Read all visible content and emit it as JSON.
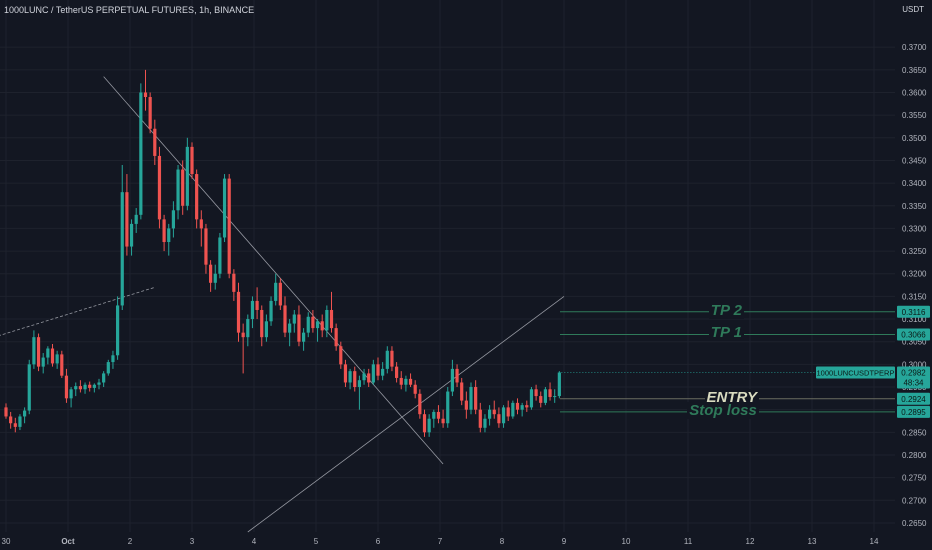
{
  "header": {
    "title": "1000LUNC / TetherUS PERPETUAL FUTURES, 1h, BINANCE"
  },
  "axis": {
    "unit": "USDT"
  },
  "colors": {
    "background": "#131722",
    "grid": "#1e222d",
    "up": "#26a69a",
    "down": "#ef5350",
    "annotation": "#2f7a5a",
    "entry": "#d9dbc0",
    "tag": "#26a69a"
  },
  "chart_data": {
    "type": "candlestick",
    "ylim": [
      0.263,
      0.376
    ],
    "y_ticks": [
      "0.2650",
      "0.2700",
      "0.2750",
      "0.2800",
      "0.2850",
      "0.2900",
      "0.2950",
      "0.3000",
      "0.3050",
      "0.3100",
      "0.3150",
      "0.3200",
      "0.3250",
      "0.3300",
      "0.3350",
      "0.3400",
      "0.3450",
      "0.3500",
      "0.3550",
      "0.3600",
      "0.3650",
      "0.3700"
    ],
    "x_ticks": [
      "30",
      "Oct",
      "2",
      "3",
      "4",
      "5",
      "6",
      "7",
      "8",
      "9",
      "10",
      "11",
      "12",
      "13",
      "14"
    ],
    "x_tick_index": [
      0,
      1,
      2,
      3,
      4,
      5,
      6,
      7,
      8,
      9,
      10,
      11,
      12,
      13,
      14
    ],
    "candles": [
      [
        0.2905,
        0.2914,
        0.288,
        0.2885
      ],
      [
        0.2885,
        0.2895,
        0.2858,
        0.287
      ],
      [
        0.287,
        0.2882,
        0.285,
        0.2862
      ],
      [
        0.2862,
        0.289,
        0.2855,
        0.2885
      ],
      [
        0.2885,
        0.2905,
        0.287,
        0.2898
      ],
      [
        0.2898,
        0.301,
        0.289,
        0.3
      ],
      [
        0.3,
        0.3075,
        0.299,
        0.306
      ],
      [
        0.306,
        0.3068,
        0.2985,
        0.2995
      ],
      [
        0.2995,
        0.3025,
        0.298,
        0.3015
      ],
      [
        0.3015,
        0.304,
        0.3,
        0.3035
      ],
      [
        0.3035,
        0.3045,
        0.2995,
        0.3002
      ],
      [
        0.3002,
        0.303,
        0.299,
        0.3022
      ],
      [
        0.3022,
        0.303,
        0.297,
        0.2975
      ],
      [
        0.2975,
        0.299,
        0.2915,
        0.2925
      ],
      [
        0.2925,
        0.295,
        0.2905,
        0.2945
      ],
      [
        0.2945,
        0.296,
        0.293,
        0.2952
      ],
      [
        0.2952,
        0.2965,
        0.2938,
        0.2945
      ],
      [
        0.2945,
        0.296,
        0.2935,
        0.2955
      ],
      [
        0.2955,
        0.2962,
        0.294,
        0.2948
      ],
      [
        0.2948,
        0.2958,
        0.2938,
        0.2955
      ],
      [
        0.2955,
        0.2968,
        0.2945,
        0.296
      ],
      [
        0.296,
        0.2985,
        0.295,
        0.298
      ],
      [
        0.298,
        0.301,
        0.2975,
        0.3005
      ],
      [
        0.3005,
        0.303,
        0.299,
        0.302
      ],
      [
        0.302,
        0.315,
        0.301,
        0.313
      ],
      [
        0.313,
        0.344,
        0.312,
        0.338
      ],
      [
        0.338,
        0.342,
        0.324,
        0.326
      ],
      [
        0.326,
        0.332,
        0.324,
        0.331
      ],
      [
        0.331,
        0.3345,
        0.329,
        0.333
      ],
      [
        0.333,
        0.362,
        0.332,
        0.36
      ],
      [
        0.36,
        0.365,
        0.356,
        0.359
      ],
      [
        0.359,
        0.36,
        0.351,
        0.352
      ],
      [
        0.352,
        0.354,
        0.344,
        0.346
      ],
      [
        0.346,
        0.348,
        0.33,
        0.332
      ],
      [
        0.332,
        0.333,
        0.325,
        0.327
      ],
      [
        0.327,
        0.331,
        0.324,
        0.33
      ],
      [
        0.33,
        0.336,
        0.328,
        0.334
      ],
      [
        0.334,
        0.344,
        0.332,
        0.343
      ],
      [
        0.343,
        0.345,
        0.333,
        0.335
      ],
      [
        0.335,
        0.35,
        0.334,
        0.348
      ],
      [
        0.348,
        0.349,
        0.341,
        0.342
      ],
      [
        0.342,
        0.343,
        0.33,
        0.332
      ],
      [
        0.332,
        0.334,
        0.326,
        0.33
      ],
      [
        0.33,
        0.331,
        0.32,
        0.322
      ],
      [
        0.322,
        0.323,
        0.316,
        0.318
      ],
      [
        0.318,
        0.322,
        0.3165,
        0.32
      ],
      [
        0.32,
        0.329,
        0.319,
        0.328
      ],
      [
        0.328,
        0.342,
        0.327,
        0.341
      ],
      [
        0.341,
        0.342,
        0.319,
        0.32
      ],
      [
        0.32,
        0.321,
        0.314,
        0.316
      ],
      [
        0.316,
        0.318,
        0.305,
        0.307
      ],
      [
        0.307,
        0.309,
        0.298,
        0.306
      ],
      [
        0.306,
        0.311,
        0.304,
        0.31
      ],
      [
        0.31,
        0.315,
        0.308,
        0.314
      ],
      [
        0.314,
        0.317,
        0.31,
        0.312
      ],
      [
        0.312,
        0.313,
        0.304,
        0.306
      ],
      [
        0.306,
        0.311,
        0.305,
        0.3095
      ],
      [
        0.3095,
        0.315,
        0.3085,
        0.314
      ],
      [
        0.314,
        0.32,
        0.313,
        0.318
      ],
      [
        0.318,
        0.319,
        0.312,
        0.313
      ],
      [
        0.313,
        0.315,
        0.306,
        0.307
      ],
      [
        0.307,
        0.31,
        0.304,
        0.309
      ],
      [
        0.309,
        0.312,
        0.307,
        0.311
      ],
      [
        0.311,
        0.313,
        0.304,
        0.305
      ],
      [
        0.305,
        0.308,
        0.303,
        0.307
      ],
      [
        0.307,
        0.3115,
        0.306,
        0.3105
      ],
      [
        0.3105,
        0.312,
        0.307,
        0.308
      ],
      [
        0.308,
        0.31,
        0.305,
        0.3095
      ],
      [
        0.3095,
        0.311,
        0.306,
        0.3075
      ],
      [
        0.3075,
        0.313,
        0.306,
        0.312
      ],
      [
        0.312,
        0.316,
        0.307,
        0.308
      ],
      [
        0.308,
        0.309,
        0.303,
        0.304
      ],
      [
        0.304,
        0.305,
        0.299,
        0.3
      ],
      [
        0.3,
        0.301,
        0.295,
        0.296
      ],
      [
        0.296,
        0.299,
        0.2945,
        0.2985
      ],
      [
        0.2985,
        0.2995,
        0.294,
        0.295
      ],
      [
        0.295,
        0.2975,
        0.29,
        0.2965
      ],
      [
        0.2965,
        0.299,
        0.2955,
        0.298
      ],
      [
        0.298,
        0.299,
        0.295,
        0.296
      ],
      [
        0.296,
        0.301,
        0.2955,
        0.3
      ],
      [
        0.3,
        0.3015,
        0.2965,
        0.2975
      ],
      [
        0.2975,
        0.3005,
        0.2965,
        0.299
      ],
      [
        0.299,
        0.304,
        0.298,
        0.303
      ],
      [
        0.303,
        0.304,
        0.2985,
        0.2995
      ],
      [
        0.2995,
        0.3005,
        0.296,
        0.297
      ],
      [
        0.297,
        0.2985,
        0.2945,
        0.2955
      ],
      [
        0.2955,
        0.2975,
        0.294,
        0.2968
      ],
      [
        0.2968,
        0.298,
        0.295,
        0.2955
      ],
      [
        0.2955,
        0.2965,
        0.2925,
        0.2935
      ],
      [
        0.2935,
        0.2945,
        0.288,
        0.289
      ],
      [
        0.289,
        0.29,
        0.284,
        0.285
      ],
      [
        0.285,
        0.289,
        0.284,
        0.288
      ],
      [
        0.288,
        0.29,
        0.286,
        0.2895
      ],
      [
        0.2895,
        0.291,
        0.287,
        0.288
      ],
      [
        0.288,
        0.29,
        0.286,
        0.287
      ],
      [
        0.287,
        0.295,
        0.286,
        0.294
      ],
      [
        0.294,
        0.301,
        0.293,
        0.299
      ],
      [
        0.299,
        0.3,
        0.295,
        0.296
      ],
      [
        0.296,
        0.297,
        0.291,
        0.292
      ],
      [
        0.292,
        0.294,
        0.288,
        0.29
      ],
      [
        0.29,
        0.296,
        0.289,
        0.295
      ],
      [
        0.295,
        0.2965,
        0.289,
        0.29
      ],
      [
        0.29,
        0.2915,
        0.285,
        0.286
      ],
      [
        0.286,
        0.289,
        0.285,
        0.288
      ],
      [
        0.288,
        0.291,
        0.2865,
        0.29
      ],
      [
        0.29,
        0.292,
        0.288,
        0.289
      ],
      [
        0.289,
        0.2905,
        0.286,
        0.287
      ],
      [
        0.287,
        0.291,
        0.286,
        0.2905
      ],
      [
        0.2905,
        0.292,
        0.2875,
        0.2885
      ],
      [
        0.2885,
        0.292,
        0.288,
        0.2915
      ],
      [
        0.2915,
        0.2925,
        0.289,
        0.29
      ],
      [
        0.29,
        0.2915,
        0.2885,
        0.291
      ],
      [
        0.291,
        0.292,
        0.2895,
        0.2905
      ],
      [
        0.2905,
        0.295,
        0.29,
        0.2945
      ],
      [
        0.2945,
        0.2955,
        0.292,
        0.293
      ],
      [
        0.293,
        0.294,
        0.2905,
        0.2915
      ],
      [
        0.2915,
        0.295,
        0.291,
        0.2945
      ],
      [
        0.2945,
        0.296,
        0.292,
        0.2928
      ],
      [
        0.2928,
        0.2945,
        0.2915,
        0.293
      ],
      [
        0.293,
        0.2985,
        0.2925,
        0.2982
      ]
    ],
    "levels": [
      {
        "label": "TP 2",
        "price": 0.3116,
        "tag": "0.3116"
      },
      {
        "label": "TP 1",
        "price": 0.3066,
        "tag": "0.3066"
      },
      {
        "label": "ENTRY",
        "price": 0.2924,
        "tag": "0.2924"
      },
      {
        "label": "Stop loss",
        "price": 0.2895,
        "tag": "0.2895"
      }
    ],
    "current_price": {
      "symbol": "1000LUNCUSDTPERP",
      "price": "0.2982",
      "countdown": "48:34"
    },
    "trendlines": [
      {
        "style": "dashed",
        "from": [
          -12,
          0.303
        ],
        "to": [
          32,
          0.317
        ]
      },
      {
        "style": "solid",
        "from": [
          21,
          0.3635
        ],
        "to": [
          94,
          0.278
        ]
      },
      {
        "style": "solid",
        "from": [
          52,
          0.263
        ],
        "to": [
          120,
          0.315
        ]
      }
    ]
  }
}
